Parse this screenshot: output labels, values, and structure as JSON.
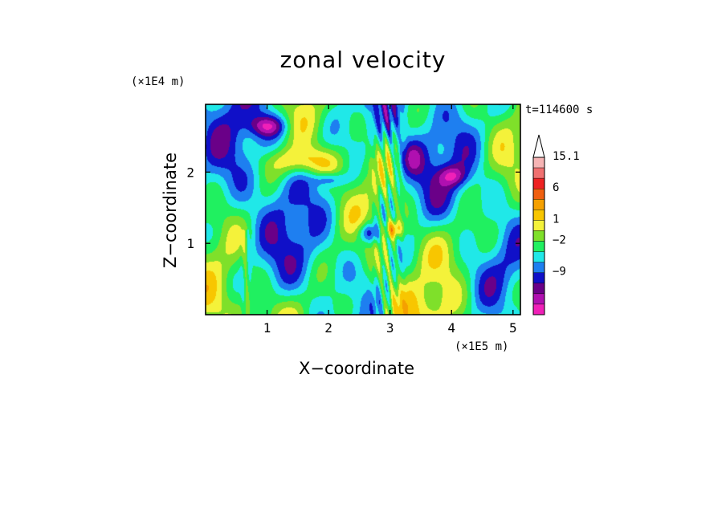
{
  "chart_data": {
    "type": "heatmap",
    "title": "zonal velocity",
    "xlabel": "X−coordinate",
    "ylabel": "Z−coordinate",
    "x_unit": "(×1E5 m)",
    "y_unit": "(×1E4 m)",
    "annotation": "t=114600 s",
    "xlim": [
      0,
      5.12
    ],
    "ylim": [
      0,
      2.95
    ],
    "x_ticks": [
      "1",
      "2",
      "3",
      "4",
      "5"
    ],
    "x_tick_values": [
      1,
      2,
      3,
      4,
      5
    ],
    "y_ticks": [
      "1",
      "2"
    ],
    "y_tick_values": [
      1,
      2
    ],
    "colorbar": {
      "extend": "max",
      "labels": [
        "15.1",
        "6",
        "1",
        "−2",
        "−9"
      ],
      "colors": [
        "#fdfdfd",
        "#f6b4b4",
        "#f07070",
        "#ee2222",
        "#f06010",
        "#f5a000",
        "#f8c600",
        "#f4f23a",
        "#7fe02a",
        "#20f060",
        "#20e8e8",
        "#1e7ff0",
        "#1010c8",
        "#6a0088",
        "#b010b0",
        "#f020b8"
      ]
    },
    "field_note": "Contoured zonal velocity field (m/s); colors range from magenta/blue (negative) through green/cyan (near zero) to orange/red (positive)."
  }
}
